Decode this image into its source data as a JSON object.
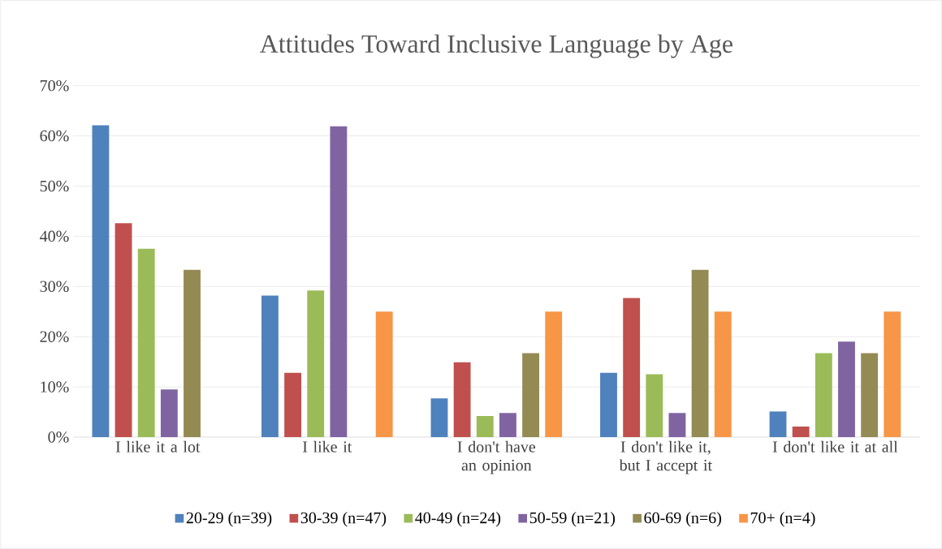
{
  "chart_data": {
    "type": "bar",
    "title": "Attitudes Toward Inclusive Language by Age",
    "categories": [
      "I like it a lot",
      "I like it",
      "I don't have an opinion",
      "I don't like it, but I accept it",
      "I don't like it at all"
    ],
    "series": [
      {
        "name": "20-29 (n=39)",
        "color": "#4f81bd",
        "values": [
          62.1,
          28.2,
          7.7,
          12.8,
          5.1
        ]
      },
      {
        "name": "30-39 (n=47)",
        "color": "#c0504d",
        "values": [
          42.6,
          12.8,
          14.9,
          27.7,
          2.1
        ]
      },
      {
        "name": "40-49 (n=24)",
        "color": "#9bbb59",
        "values": [
          37.5,
          29.2,
          4.2,
          12.5,
          16.7
        ]
      },
      {
        "name": "50-59 (n=21)",
        "color": "#8064a2",
        "values": [
          9.5,
          61.9,
          4.8,
          4.8,
          19.0
        ]
      },
      {
        "name": "60-69 (n=6)",
        "color": "#948a54",
        "values": [
          33.3,
          0,
          16.7,
          33.3,
          16.7
        ]
      },
      {
        "name": "70+ (n=4)",
        "color": "#f79646",
        "values": [
          0,
          25.0,
          25.0,
          25.0,
          25.0
        ]
      }
    ],
    "ylim": [
      0,
      70
    ],
    "yticks": [
      {
        "value": 0,
        "label": "0%"
      },
      {
        "value": 10,
        "label": "10%"
      },
      {
        "value": 20,
        "label": "20%"
      },
      {
        "value": 30,
        "label": "30%"
      },
      {
        "value": 40,
        "label": "40%"
      },
      {
        "value": 50,
        "label": "50%"
      },
      {
        "value": 60,
        "label": "60%"
      },
      {
        "value": 70,
        "label": "70%"
      }
    ],
    "grid": "y",
    "legend": "bottom"
  }
}
